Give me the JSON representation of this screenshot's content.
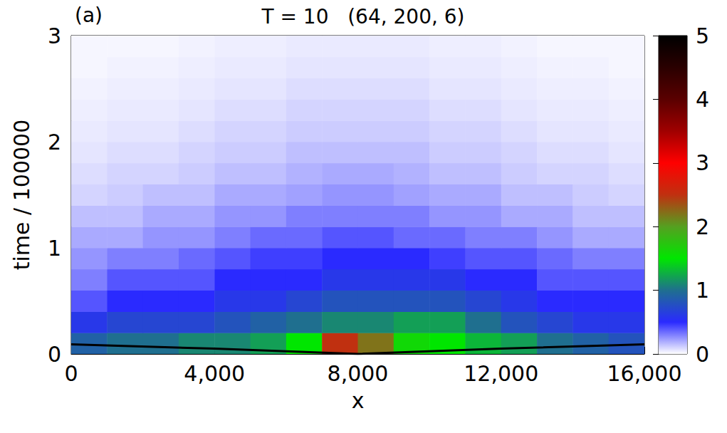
{
  "chart_data": {
    "type": "heatmap",
    "title": "T = 10   (64, 200, 6)",
    "panel_label": "(a)",
    "xlabel": "x",
    "ylabel": "time / 100000",
    "xlim": [
      0,
      16000
    ],
    "xticks": [
      0,
      4000,
      8000,
      12000,
      16000
    ],
    "ylim": [
      0,
      3
    ],
    "yticks": [
      0,
      1,
      2,
      3
    ],
    "cells": {
      "x_edges": [
        0,
        1000,
        2000,
        3000,
        4000,
        5000,
        6000,
        7000,
        8000,
        9000,
        10000,
        11000,
        12000,
        13000,
        14000,
        15000,
        16000
      ],
      "y_edges": [
        0,
        0.2,
        0.4,
        0.6,
        0.8,
        1.0,
        1.2,
        1.4,
        1.6,
        1.8,
        2.0,
        2.2,
        2.4,
        2.6,
        2.8,
        3.0
      ],
      "values": [
        [
          0.9,
          1.0,
          1.0,
          1.1,
          1.1,
          1.2,
          1.5,
          2.5,
          2.2,
          1.6,
          1.5,
          1.3,
          1.2,
          1.0,
          0.9,
          0.8
        ],
        [
          0.6,
          0.7,
          0.7,
          0.7,
          0.8,
          0.9,
          1.0,
          1.1,
          1.1,
          1.2,
          1.2,
          1.0,
          0.8,
          0.7,
          0.6,
          0.6
        ],
        [
          0.4,
          0.5,
          0.5,
          0.5,
          0.6,
          0.6,
          0.7,
          0.8,
          0.8,
          0.8,
          0.8,
          0.7,
          0.6,
          0.5,
          0.5,
          0.5
        ],
        [
          0.3,
          0.4,
          0.4,
          0.4,
          0.5,
          0.5,
          0.5,
          0.6,
          0.6,
          0.6,
          0.6,
          0.5,
          0.5,
          0.4,
          0.4,
          0.4
        ],
        [
          0.25,
          0.3,
          0.3,
          0.35,
          0.4,
          0.45,
          0.45,
          0.5,
          0.5,
          0.5,
          0.45,
          0.4,
          0.4,
          0.35,
          0.3,
          0.3
        ],
        [
          0.2,
          0.2,
          0.25,
          0.25,
          0.3,
          0.35,
          0.35,
          0.4,
          0.4,
          0.35,
          0.35,
          0.3,
          0.3,
          0.25,
          0.2,
          0.2
        ],
        [
          0.15,
          0.15,
          0.2,
          0.2,
          0.25,
          0.25,
          0.3,
          0.3,
          0.3,
          0.3,
          0.25,
          0.25,
          0.2,
          0.2,
          0.15,
          0.15
        ],
        [
          0.1,
          0.12,
          0.15,
          0.15,
          0.2,
          0.2,
          0.22,
          0.25,
          0.25,
          0.22,
          0.2,
          0.2,
          0.15,
          0.15,
          0.12,
          0.1
        ],
        [
          0.08,
          0.1,
          0.1,
          0.12,
          0.15,
          0.15,
          0.18,
          0.2,
          0.2,
          0.18,
          0.15,
          0.15,
          0.12,
          0.1,
          0.1,
          0.08
        ],
        [
          0.06,
          0.08,
          0.08,
          0.1,
          0.12,
          0.12,
          0.15,
          0.15,
          0.15,
          0.15,
          0.12,
          0.12,
          0.1,
          0.08,
          0.08,
          0.06
        ],
        [
          0.05,
          0.06,
          0.06,
          0.08,
          0.1,
          0.1,
          0.12,
          0.12,
          0.12,
          0.12,
          0.1,
          0.1,
          0.08,
          0.06,
          0.06,
          0.05
        ],
        [
          0.04,
          0.05,
          0.05,
          0.06,
          0.08,
          0.08,
          0.1,
          0.1,
          0.1,
          0.1,
          0.08,
          0.08,
          0.06,
          0.05,
          0.05,
          0.04
        ],
        [
          0.03,
          0.04,
          0.04,
          0.05,
          0.06,
          0.06,
          0.08,
          0.08,
          0.08,
          0.08,
          0.06,
          0.06,
          0.05,
          0.04,
          0.04,
          0.03
        ],
        [
          0.02,
          0.03,
          0.03,
          0.04,
          0.05,
          0.05,
          0.06,
          0.06,
          0.06,
          0.06,
          0.05,
          0.05,
          0.04,
          0.03,
          0.03,
          0.02
        ],
        [
          0.02,
          0.02,
          0.02,
          0.03,
          0.04,
          0.04,
          0.05,
          0.05,
          0.05,
          0.05,
          0.04,
          0.04,
          0.03,
          0.02,
          0.02,
          0.02
        ]
      ]
    },
    "colorbar": {
      "range": [
        0,
        5
      ],
      "ticks": [
        0,
        1,
        2,
        3,
        4,
        5
      ]
    },
    "line": {
      "x": [
        0,
        4000,
        8000,
        12000,
        16000
      ],
      "values": [
        0.09,
        0.05,
        0.0,
        0.05,
        0.09
      ],
      "color": "#000000"
    }
  }
}
